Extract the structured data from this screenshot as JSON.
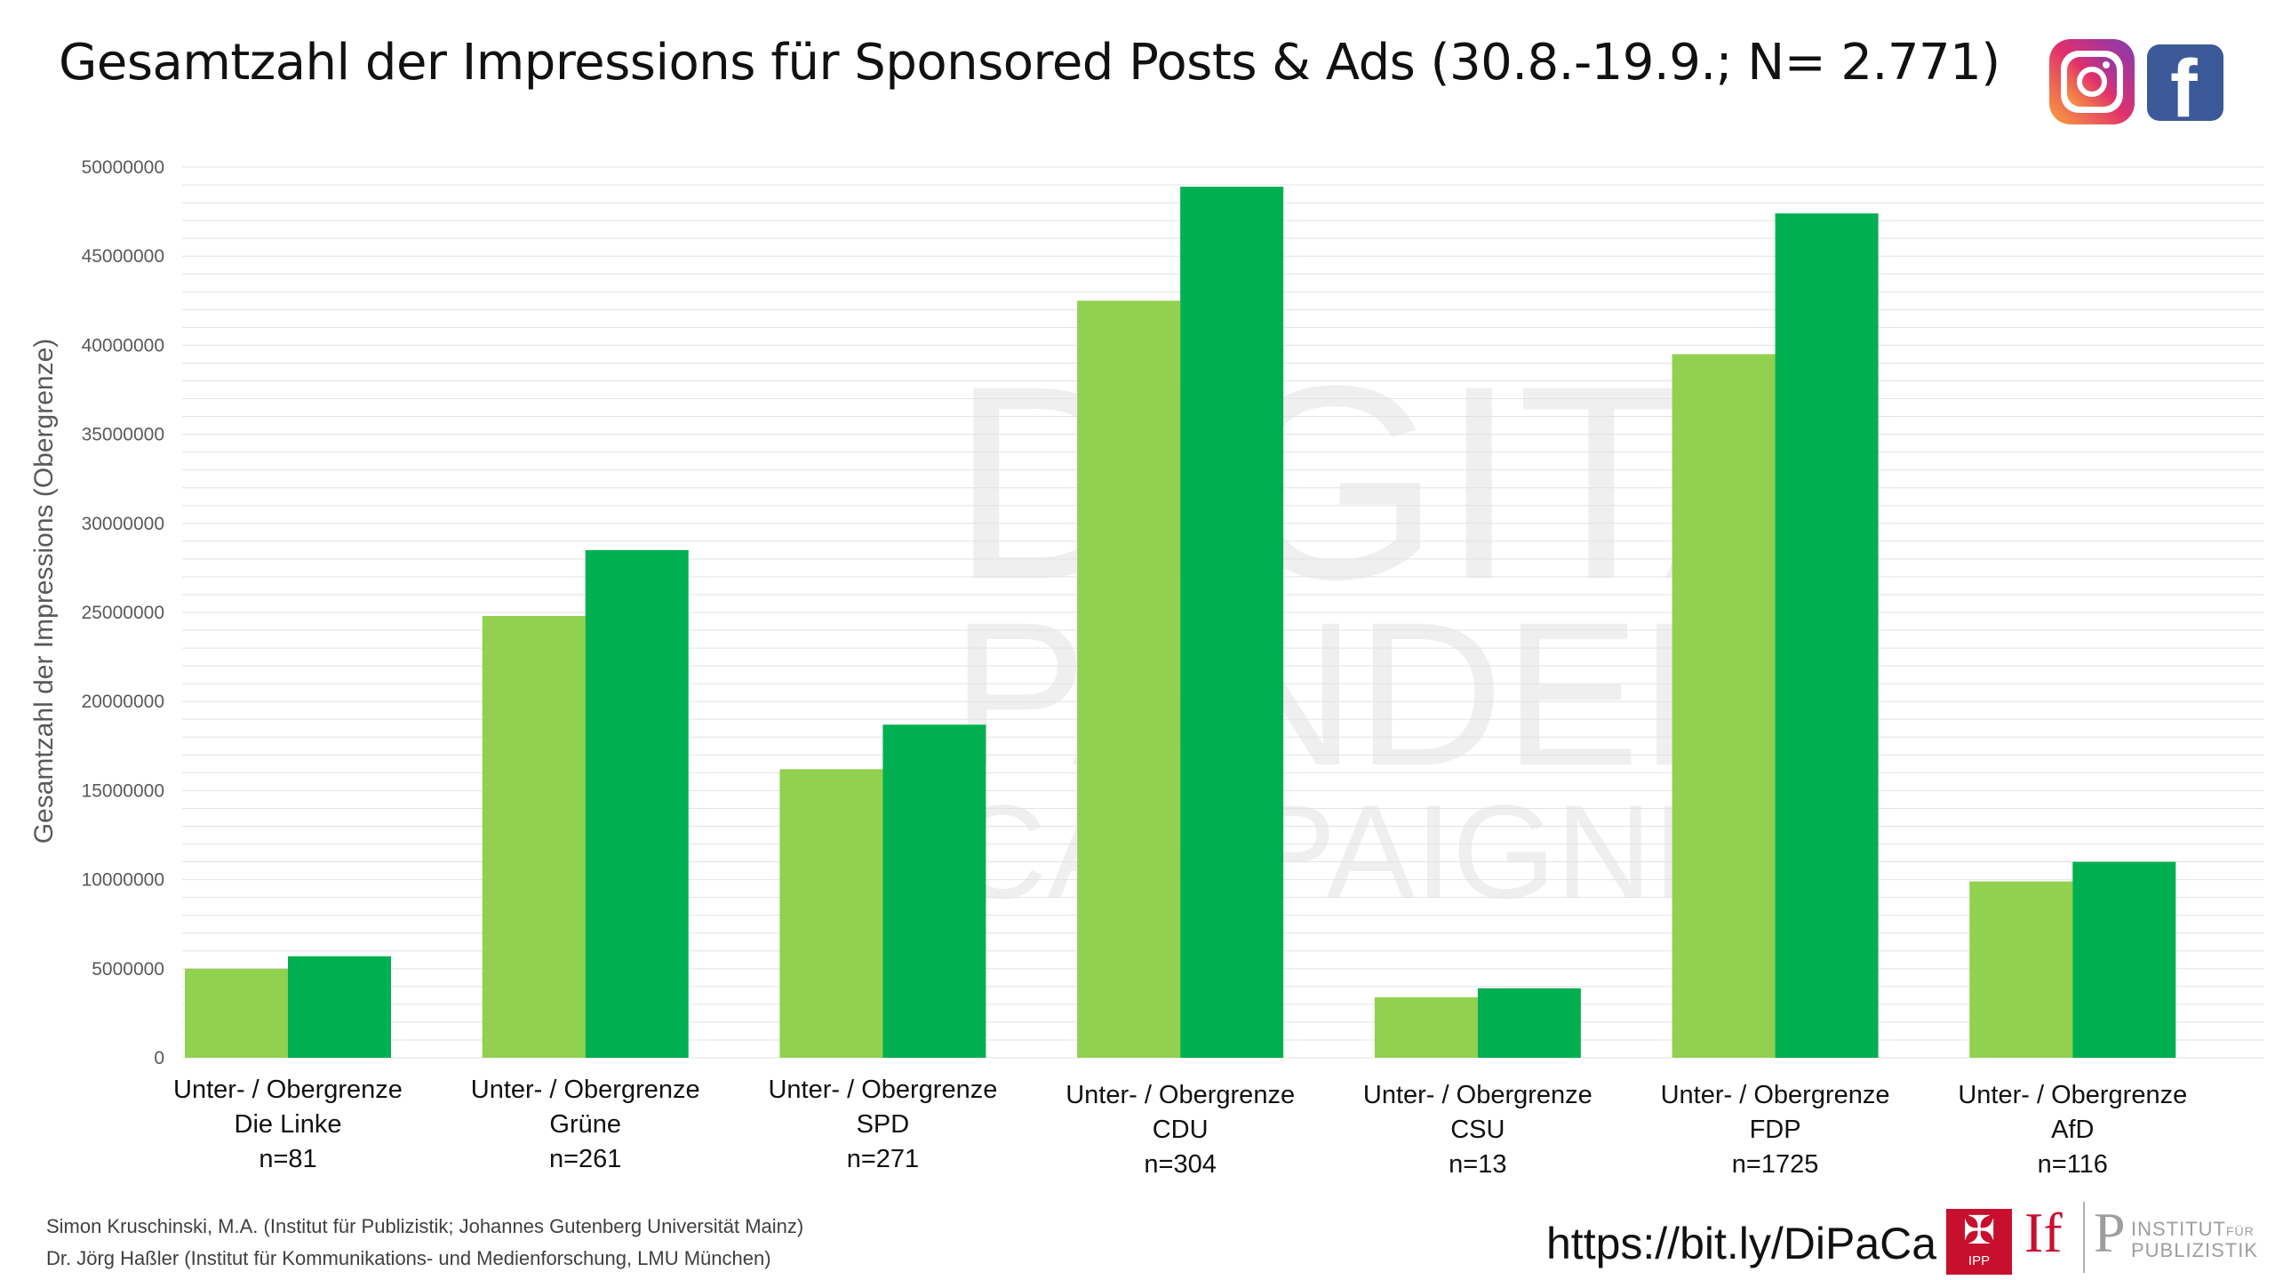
{
  "title": "Gesamtzahl der Impressions für Sponsored Posts & Ads (30.8.-19.9.; N= 2.771)",
  "social_icons": [
    "instagram-icon",
    "facebook-icon"
  ],
  "colors": {
    "lower_bound": "#92d050",
    "upper_bound": "#00b050",
    "gridline": "#e3e3e3"
  },
  "watermark": {
    "line1": "DIGITA",
    "line2": "PANDEM",
    "line3": "CAMPAIGNIN"
  },
  "chart_data": {
    "type": "bar",
    "ylabel": "Gesamtzahl der Impressions (Obergrenze)",
    "ylim": [
      0,
      50000000
    ],
    "yticks": [
      "0",
      "5000000",
      "10000000",
      "15000000",
      "20000000",
      "25000000",
      "30000000",
      "35000000",
      "40000000",
      "45000000",
      "50000000"
    ],
    "grid": true,
    "categories": [
      {
        "line1": "Unter- / Obergrenze",
        "line2": "Die Linke",
        "line3": "n=81"
      },
      {
        "line1": "Unter- / Obergrenze",
        "line2": "Grüne",
        "line3": "n=261"
      },
      {
        "line1": "Unter- / Obergrenze",
        "line2": "SPD",
        "line3": "n=271"
      },
      {
        "line1": "Unter- / Obergrenze",
        "line2": "CDU",
        "line3": "n=304"
      },
      {
        "line1": "Unter- / Obergrenze",
        "line2": "CSU",
        "line3": "n=13"
      },
      {
        "line1": "Unter- / Obergrenze",
        "line2": "FDP",
        "line3": "n=1725"
      },
      {
        "line1": "Unter- / Obergrenze",
        "line2": "AfD",
        "line3": "n=116"
      }
    ],
    "series": [
      {
        "values": [
          5000000,
          24800000,
          16200000,
          42500000,
          3400000,
          39500000,
          9900000
        ]
      },
      {
        "values": [
          5700000,
          28500000,
          18700000,
          48900000,
          3900000,
          47400000,
          11000000
        ]
      }
    ]
  },
  "credits": {
    "line1": "Simon Kruschinski, M.A. (Institut für Publizistik; Johannes Gutenberg Universität Mainz)",
    "line2": "Dr. Jörg Haßler (Institut für Kommunikations- und Medienforschung, LMU München)"
  },
  "url": "https://bit.ly/DiPaCa",
  "logos": {
    "ipp_text": "IPP",
    "ifp_if": "If",
    "ifp_p": "P",
    "institut_line1": "INSTITUT",
    "institut_fuer": "FÜR",
    "institut_line2": "PUBLIZISTIK"
  }
}
